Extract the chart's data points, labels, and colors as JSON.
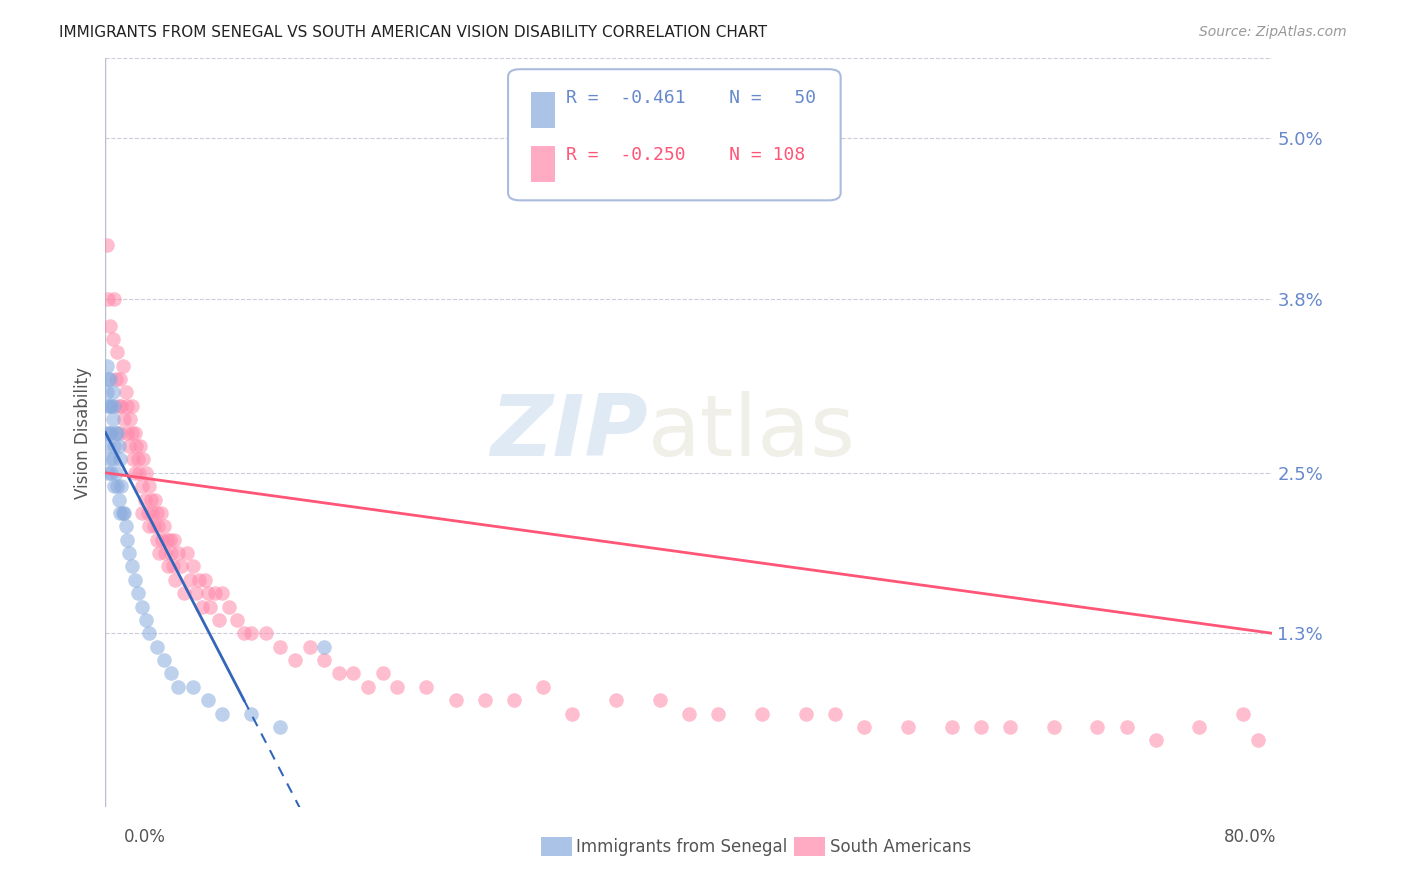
{
  "title": "IMMIGRANTS FROM SENEGAL VS SOUTH AMERICAN VISION DISABILITY CORRELATION CHART",
  "source": "Source: ZipAtlas.com",
  "ylabel": "Vision Disability",
  "ytick_labels": [
    "5.0%",
    "3.8%",
    "2.5%",
    "1.3%"
  ],
  "ytick_values": [
    0.05,
    0.038,
    0.025,
    0.013
  ],
  "ylim": [
    0.0,
    0.056
  ],
  "xlim": [
    0.0,
    0.8
  ],
  "xtick_labels": [
    "0.0%",
    "80.0%"
  ],
  "legend_r1": "R = ",
  "legend_v1": "-0.461",
  "legend_n1": "N = ",
  "legend_nv1": "50",
  "legend_r2": "R = ",
  "legend_v2": "-0.250",
  "legend_n2": "N = ",
  "legend_nv2": "108",
  "watermark_zip": "ZIP",
  "watermark_atlas": "atlas",
  "legend_label1": "Immigrants from Senegal",
  "legend_label2": "South Americans",
  "blue_color": "#88AADD",
  "pink_color": "#FF88AA",
  "blue_trend_color": "#3366BB",
  "pink_trend_color": "#FF5577",
  "grid_color": "#CCCCDD",
  "background_color": "#FFFFFF",
  "title_color": "#222222",
  "source_color": "#999999",
  "axis_tick_color": "#6688CC",
  "ylabel_color": "#555555",
  "bottom_label_color": "#555555"
}
